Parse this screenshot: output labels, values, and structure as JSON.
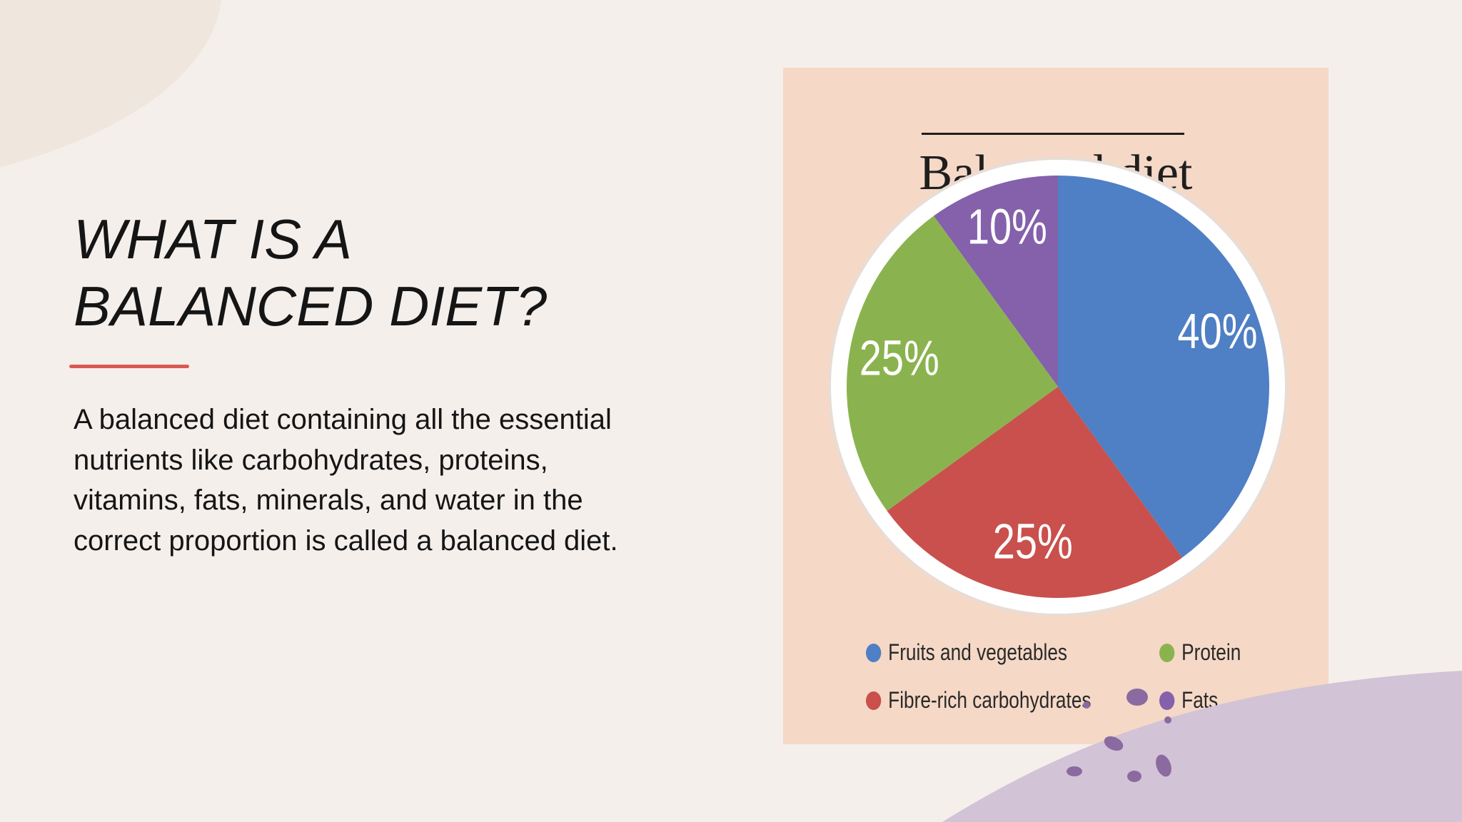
{
  "slide": {
    "title_lines": [
      "WHAT IS A",
      "BALANCED DIET?"
    ],
    "body": "A balanced diet containing all the essential nutrients like carbohydrates, proteins, vitamins, fats, minerals, and water in the correct proportion is called a balanced diet."
  },
  "colors": {
    "background": "#f5efec",
    "accent_line": "#d95a55",
    "panel": "#f5d8c6",
    "fruits_veg": "#4f7fc4",
    "carbs": "#c9504c",
    "protein": "#8ab34f",
    "fats": "#8560ab",
    "wave": "#d2c3d6"
  },
  "chart_data": {
    "type": "pie",
    "title": "Balanced diet",
    "slices": [
      {
        "label": "Fruits and vegetables",
        "value": 40,
        "value_label": "40%",
        "color": "#4f7fc4"
      },
      {
        "label": "Fibre-rich carbohydrates",
        "value": 25,
        "value_label": "25%",
        "color": "#c9504c"
      },
      {
        "label": "Protein",
        "value": 25,
        "value_label": "25%",
        "color": "#8ab34f"
      },
      {
        "label": "Fats",
        "value": 10,
        "value_label": "10%",
        "color": "#8560ab"
      }
    ],
    "legend": [
      "Fruits and vegetables",
      "Protein",
      "Fibre-rich carbohydrates",
      "Fats"
    ],
    "legend_placement": "bottom"
  }
}
